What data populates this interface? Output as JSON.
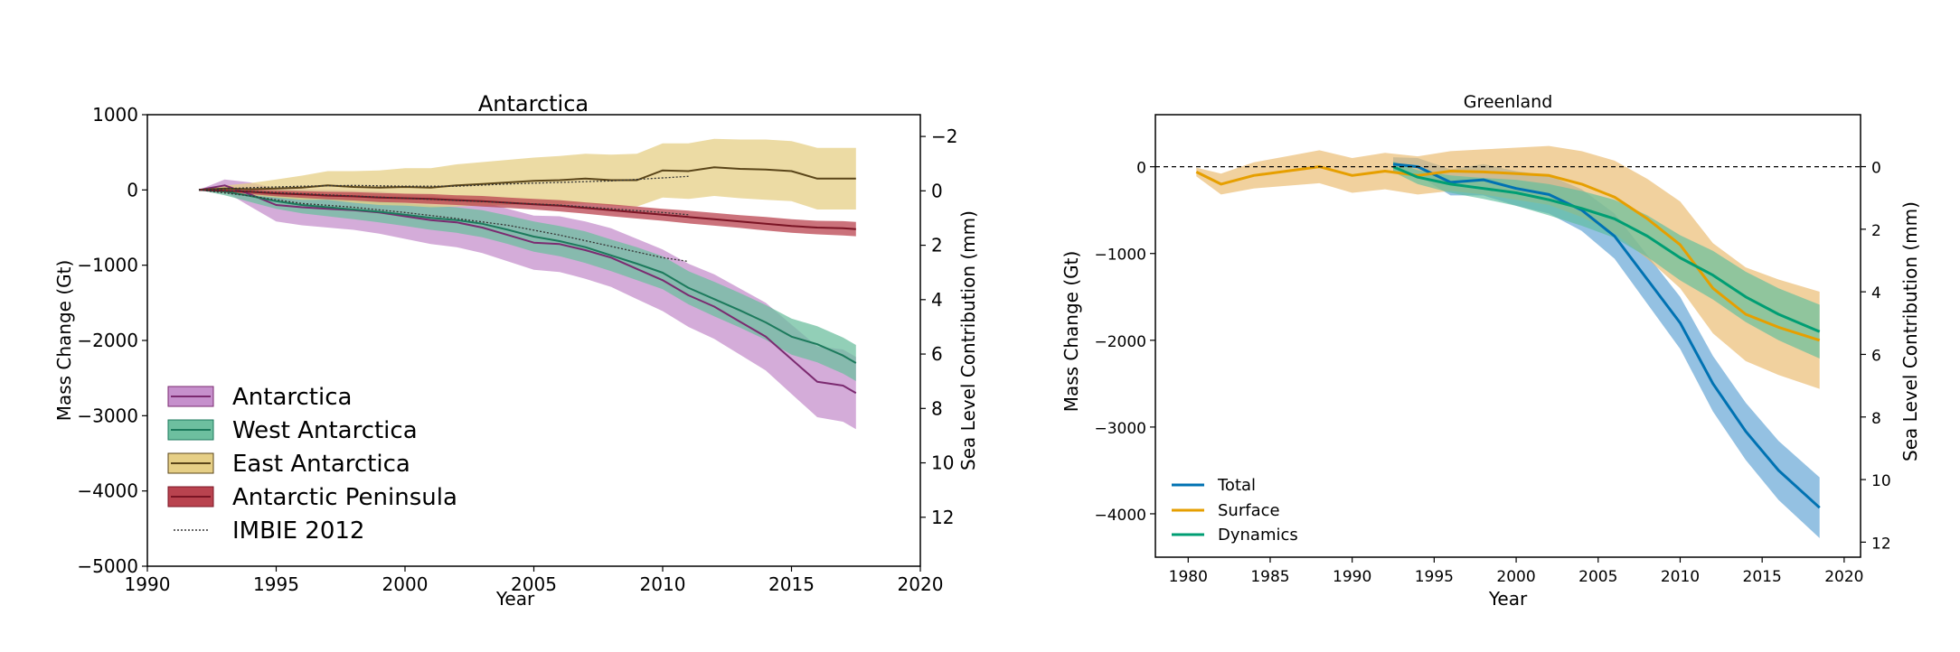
{
  "chart_data": [
    {
      "type": "line",
      "title": "Antarctica",
      "xlabel": "Year",
      "ylabel": "Mass Change (Gt)",
      "y2label": "Sea Level Contribution (mm)",
      "xlim": [
        1990,
        2020
      ],
      "ylim": [
        -5000,
        1000
      ],
      "y2lim": [
        13.8,
        -2.8
      ],
      "xticks": [
        1990,
        1995,
        2000,
        2005,
        2010,
        2015,
        2020
      ],
      "yticks": [
        1000,
        0,
        -1000,
        -2000,
        -3000,
        -4000,
        -5000
      ],
      "y2ticks": [
        -2,
        0,
        2,
        4,
        6,
        8,
        10,
        12
      ],
      "legend_position": "lower-left",
      "x": [
        1992,
        1993,
        1994,
        1995,
        1996,
        1997,
        1998,
        1999,
        2000,
        2001,
        2002,
        2003,
        2004,
        2005,
        2006,
        2007,
        2008,
        2009,
        2010,
        2011,
        2012,
        2013,
        2014,
        2015,
        2016,
        2017,
        2017.5
      ],
      "series": [
        {
          "name": "Antarctica",
          "color": "#7b2a70",
          "fill": "#c690cc",
          "values": [
            0,
            60,
            -60,
            -200,
            -230,
            -250,
            -270,
            -300,
            -350,
            -400,
            -430,
            -500,
            -600,
            -700,
            -720,
            -800,
            -900,
            -1050,
            -1200,
            -1400,
            -1550,
            -1750,
            -1950,
            -2250,
            -2550,
            -2600,
            -2700
          ],
          "band": [
            0,
            80,
            160,
            220,
            240,
            250,
            260,
            280,
            300,
            320,
            330,
            340,
            350,
            360,
            370,
            380,
            390,
            400,
            410,
            420,
            430,
            440,
            450,
            460,
            470,
            480,
            480
          ]
        },
        {
          "name": "West Antarctica",
          "color": "#1c7a5c",
          "fill": "#6dbf9f",
          "values": [
            0,
            -20,
            -80,
            -150,
            -200,
            -230,
            -260,
            -290,
            -330,
            -370,
            -400,
            -450,
            -530,
            -620,
            -680,
            -760,
            -870,
            -980,
            -1100,
            -1300,
            -1450,
            -1600,
            -1760,
            -1950,
            -2050,
            -2200,
            -2300
          ],
          "band": [
            0,
            50,
            80,
            100,
            110,
            120,
            130,
            140,
            150,
            160,
            170,
            180,
            190,
            200,
            200,
            210,
            210,
            220,
            220,
            220,
            230,
            230,
            230,
            240,
            240,
            240,
            240
          ]
        },
        {
          "name": "East Antarctica",
          "color": "#5a4519",
          "fill": "#e6cf86",
          "values": [
            0,
            20,
            10,
            20,
            30,
            60,
            40,
            30,
            40,
            30,
            60,
            80,
            100,
            120,
            130,
            150,
            130,
            130,
            260,
            250,
            300,
            280,
            270,
            250,
            150,
            150,
            150
          ],
          "band": [
            0,
            40,
            80,
            120,
            160,
            190,
            210,
            230,
            250,
            260,
            280,
            290,
            300,
            310,
            320,
            330,
            340,
            350,
            360,
            370,
            380,
            390,
            400,
            400,
            410,
            410,
            410
          ]
        },
        {
          "name": "Antarctic Peninsula",
          "color": "#7a1424",
          "fill": "#b9434f",
          "values": [
            0,
            -10,
            -25,
            -45,
            -60,
            -75,
            -85,
            -100,
            -110,
            -120,
            -135,
            -150,
            -170,
            -190,
            -210,
            -240,
            -270,
            -300,
            -330,
            -360,
            -390,
            -420,
            -450,
            -480,
            -500,
            -510,
            -520
          ],
          "band": [
            0,
            20,
            30,
            40,
            45,
            50,
            55,
            60,
            60,
            65,
            65,
            70,
            70,
            70,
            75,
            75,
            80,
            80,
            80,
            85,
            85,
            85,
            90,
            90,
            90,
            95,
            95
          ]
        }
      ],
      "reference": {
        "name": "IMBIE 2012",
        "x": [
          1992,
          1994,
          1996,
          1998,
          2000,
          2002,
          2004,
          2006,
          2008,
          2010,
          2011
        ],
        "series": [
          [
            0,
            30,
            50,
            60,
            50,
            50,
            80,
            100,
            120,
            160,
            180
          ],
          [
            0,
            -80,
            -180,
            -230,
            -300,
            -380,
            -470,
            -600,
            -750,
            -900,
            -950
          ],
          [
            0,
            -20,
            -50,
            -80,
            -110,
            -140,
            -170,
            -200,
            -250,
            -300,
            -330
          ]
        ]
      }
    },
    {
      "type": "line",
      "title": "Greenland",
      "xlabel": "Year",
      "ylabel": "Mass Change (Gt)",
      "y2label": "Sea Level Contribution (mm)",
      "xlim": [
        1978,
        2021
      ],
      "ylim": [
        -4500,
        600
      ],
      "y2lim": [
        12.48,
        -1.66
      ],
      "xticks": [
        1980,
        1985,
        1990,
        1995,
        2000,
        2005,
        2010,
        2015,
        2020
      ],
      "yticks": [
        0,
        -1000,
        -2000,
        -3000,
        -4000
      ],
      "y2ticks": [
        0,
        2,
        4,
        6,
        8,
        10,
        12
      ],
      "reference_line": 0,
      "legend_position": "lower-left",
      "series": [
        {
          "name": "Total",
          "color": "#0072b2",
          "fill": "#5aa0d3",
          "x": [
            1992.5,
            1994,
            1996,
            1998,
            2000,
            2002,
            2004,
            2006,
            2008,
            2010,
            2012,
            2014,
            2016,
            2018.5
          ],
          "values": [
            30,
            0,
            -180,
            -150,
            -250,
            -320,
            -500,
            -800,
            -1300,
            -1800,
            -2500,
            -3050,
            -3500,
            -3930
          ],
          "band": [
            80,
            100,
            150,
            180,
            200,
            220,
            240,
            260,
            280,
            300,
            320,
            330,
            340,
            350
          ]
        },
        {
          "name": "Surface",
          "color": "#e69f00",
          "fill": "#eab86a",
          "x": [
            1980.5,
            1982,
            1984,
            1986,
            1988,
            1990,
            1992,
            1994,
            1996,
            1998,
            2000,
            2002,
            2004,
            2006,
            2008,
            2010,
            2012,
            2014,
            2016,
            2018.5
          ],
          "values": [
            -60,
            -200,
            -100,
            -50,
            0,
            -100,
            -50,
            -100,
            -50,
            -60,
            -80,
            -100,
            -200,
            -350,
            -600,
            -900,
            -1400,
            -1700,
            -1850,
            -2000
          ],
          "band": [
            50,
            120,
            150,
            170,
            190,
            200,
            210,
            220,
            230,
            260,
            300,
            340,
            380,
            420,
            460,
            500,
            520,
            540,
            550,
            560
          ]
        },
        {
          "name": "Dynamics",
          "color": "#009e73",
          "fill": "#5cbf9c",
          "x": [
            1992.5,
            1994,
            1996,
            1998,
            2000,
            2002,
            2004,
            2006,
            2008,
            2010,
            2012,
            2014,
            2016,
            2018.5
          ],
          "values": [
            0,
            -120,
            -200,
            -250,
            -300,
            -380,
            -480,
            -600,
            -800,
            -1050,
            -1250,
            -1500,
            -1700,
            -1900
          ],
          "band": [
            60,
            80,
            100,
            120,
            150,
            180,
            200,
            220,
            240,
            260,
            280,
            290,
            300,
            310
          ]
        }
      ]
    }
  ]
}
